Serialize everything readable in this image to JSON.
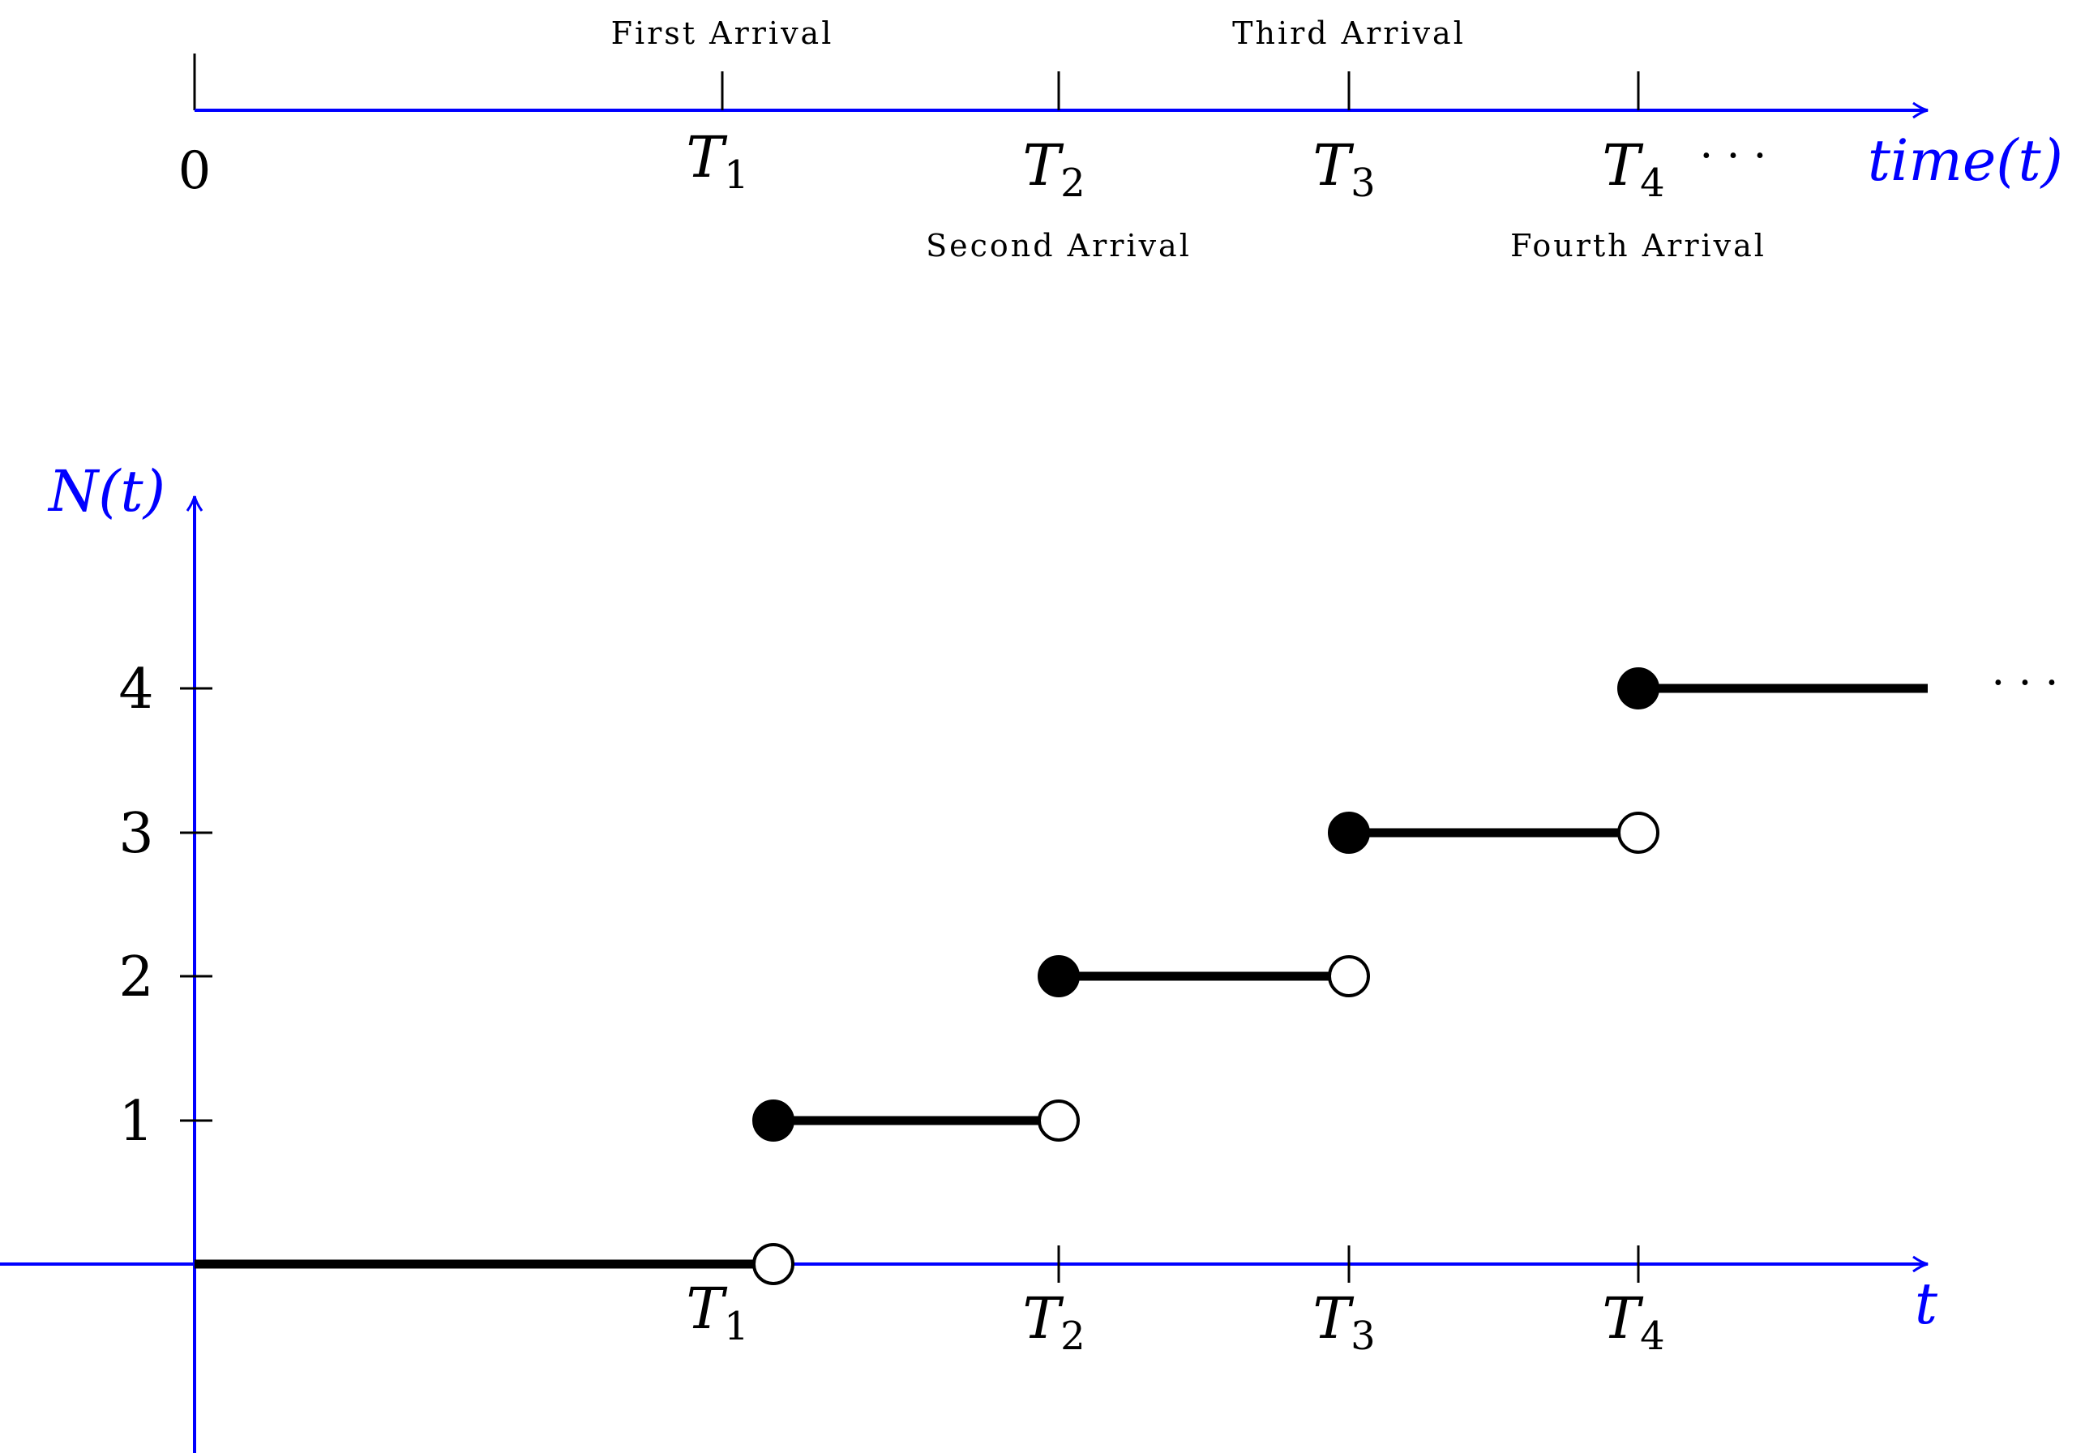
{
  "colors": {
    "axis": "#0000ff",
    "ink": "#000000",
    "background": "#ffffff"
  },
  "timeline": {
    "origin_label": "0",
    "axis_label": "time(t)",
    "ellipsis": "· · ·",
    "ticks": [
      {
        "symbol": "T",
        "sub": "1"
      },
      {
        "symbol": "T",
        "sub": "2"
      },
      {
        "symbol": "T",
        "sub": "3"
      },
      {
        "symbol": "T",
        "sub": "4"
      }
    ],
    "annotations": [
      "First Arrival",
      "Second Arrival",
      "Third Arrival",
      "Fourth Arrival"
    ]
  },
  "counting_plot": {
    "y_axis_label": "N(t)",
    "x_axis_label": "t",
    "y_ticks": [
      "1",
      "2",
      "3",
      "4"
    ],
    "x_ticks": [
      {
        "symbol": "T",
        "sub": "1"
      },
      {
        "symbol": "T",
        "sub": "2"
      },
      {
        "symbol": "T",
        "sub": "3"
      },
      {
        "symbol": "T",
        "sub": "4"
      }
    ],
    "ellipsis": "· · ·",
    "steps": [
      {
        "level": 0,
        "from": "0",
        "to": "T1",
        "start_closed": true,
        "end_open": true
      },
      {
        "level": 1,
        "from": "T1",
        "to": "T2",
        "start_closed": true,
        "end_open": true
      },
      {
        "level": 2,
        "from": "T2",
        "to": "T3",
        "start_closed": true,
        "end_open": true
      },
      {
        "level": 3,
        "from": "T3",
        "to": "T4",
        "start_closed": true,
        "end_open": true
      },
      {
        "level": 4,
        "from": "T4",
        "to": "∞",
        "start_closed": true,
        "end_open": false
      }
    ]
  }
}
